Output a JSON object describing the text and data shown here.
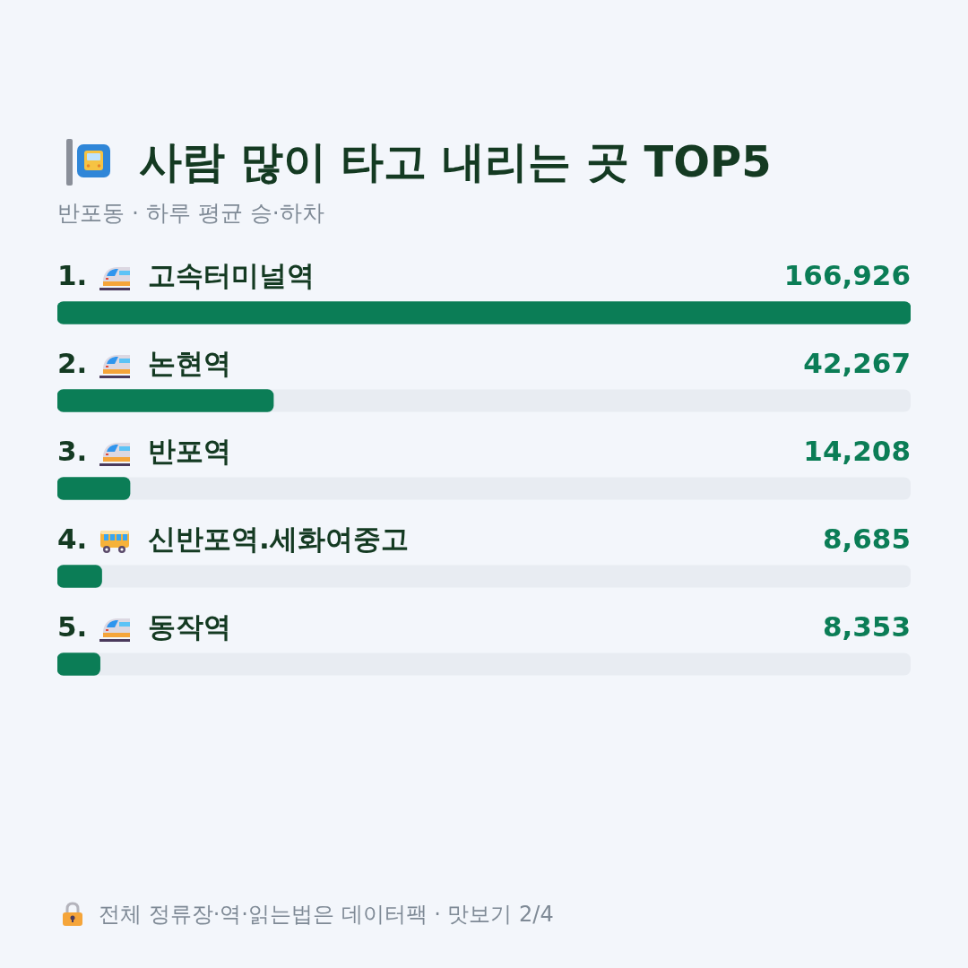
{
  "chart_data": {
    "type": "bar",
    "orientation": "horizontal",
    "title": "사람 많이 타고 내리는 곳 TOP5",
    "subtitle": "반포동 · 하루 평균 승·하차",
    "categories": [
      "1. 고속터미널역",
      "2. 논현역",
      "3. 반포역",
      "4. 신반포역.세화여중고",
      "5. 동작역"
    ],
    "values": [
      166926,
      42267,
      14208,
      8685,
      8353
    ],
    "color": "#0b7d56",
    "value_labels": [
      "166,926",
      "42,267",
      "14,208",
      "8,685",
      "8,353"
    ],
    "legend": false,
    "annotations": [
      "전체 정류장·역·읽는법은 데이터팩 · 맛보기 2/4"
    ]
  }
}
